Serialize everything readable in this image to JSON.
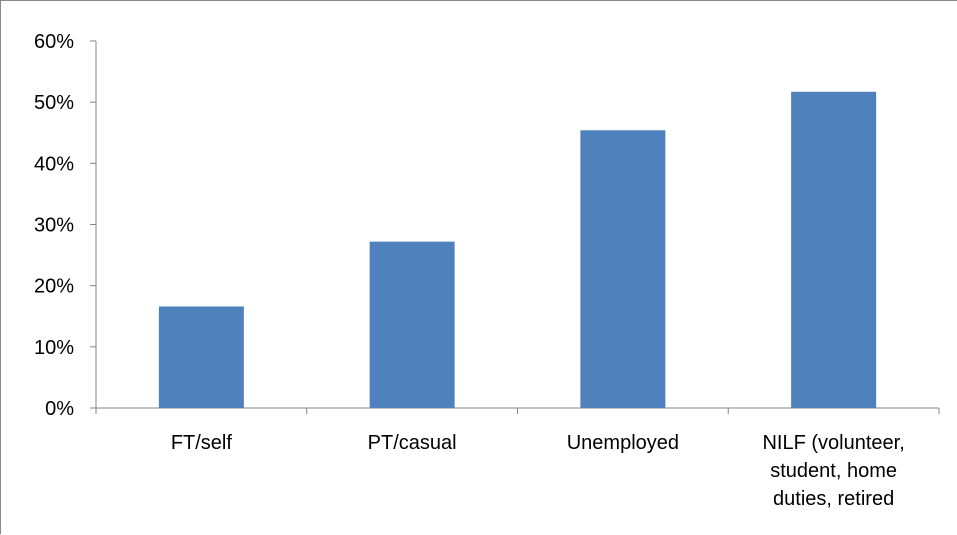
{
  "chart_data": {
    "type": "bar",
    "title": "",
    "xlabel": "",
    "ylabel": "",
    "categories": [
      [
        "FT/self"
      ],
      [
        "PT/casual"
      ],
      [
        "Unemployed"
      ],
      [
        "NILF (volunteer,",
        "student, home",
        "duties, retired"
      ]
    ],
    "values": [
      16.6,
      27.2,
      45.4,
      51.7
    ],
    "ylim": [
      0,
      60
    ],
    "yticks": [
      0,
      10,
      20,
      30,
      40,
      50,
      60
    ],
    "ytick_labels": [
      "0%",
      "10%",
      "20%",
      "30%",
      "40%",
      "50%",
      "60%"
    ],
    "grid": false,
    "legend": "none",
    "colors": {
      "bar": "#4F81BD",
      "axis": "#868686"
    }
  }
}
